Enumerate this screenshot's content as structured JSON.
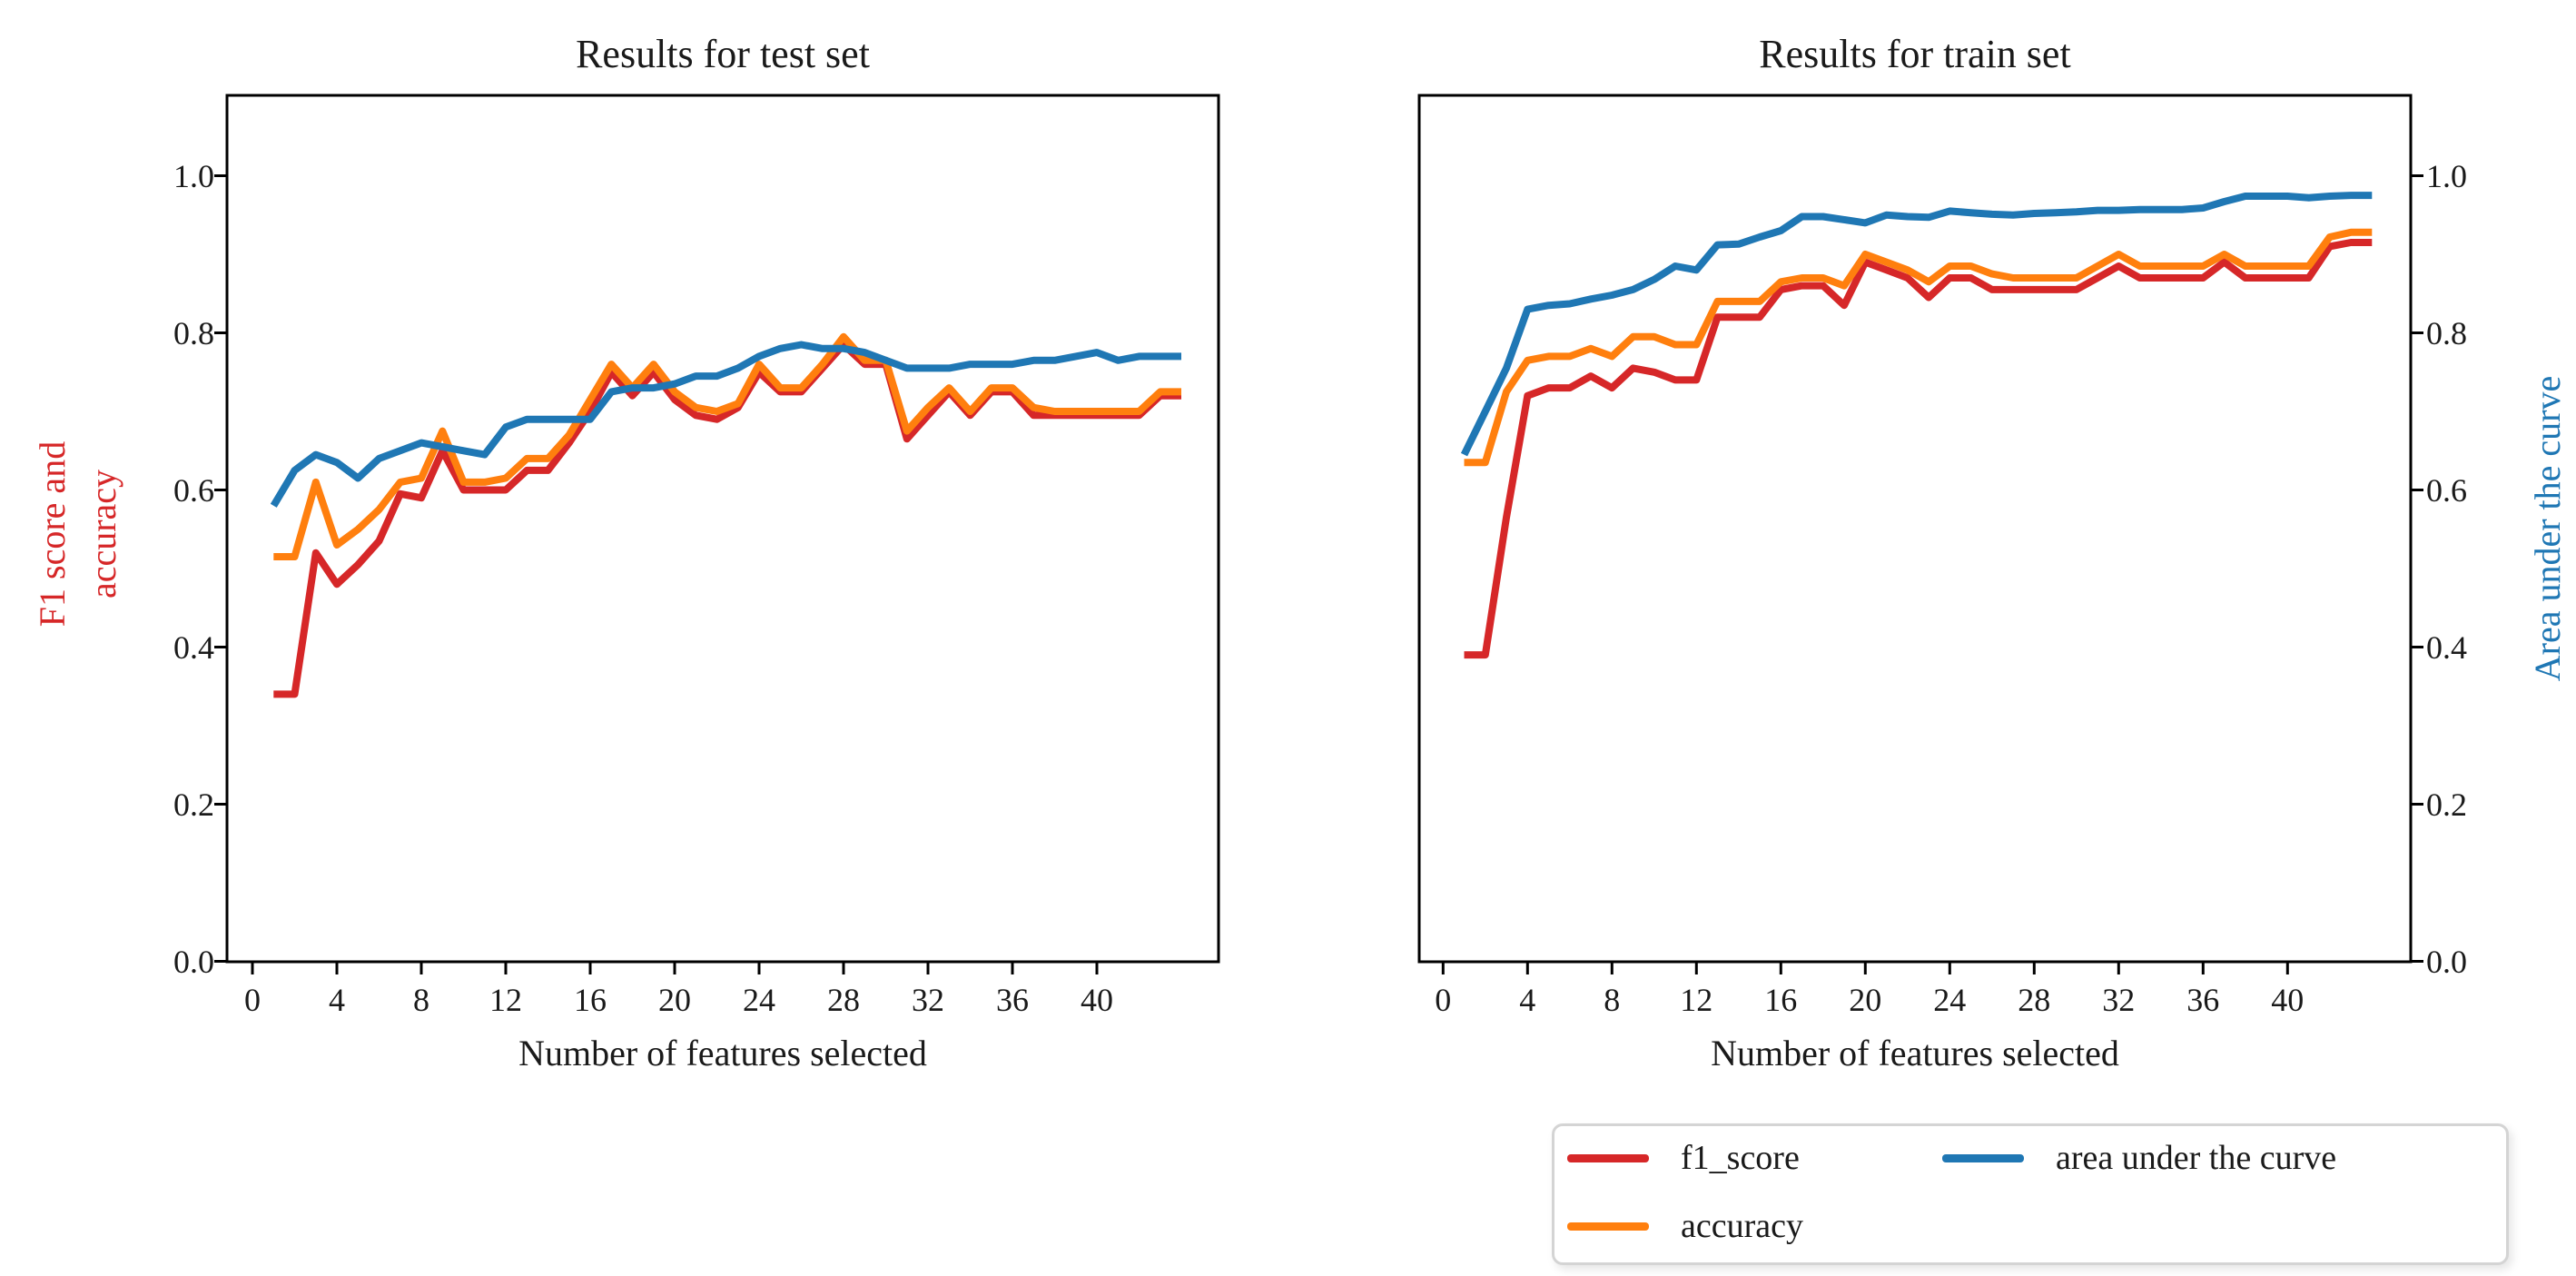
{
  "figure": {
    "background": "#ffffff"
  },
  "colors": {
    "f1_score": "#d62728",
    "accuracy": "#ff7f0e",
    "area_under_curve": "#1f77b4",
    "text": "#1a1a1a",
    "spine": "#000000",
    "legend_border": "#d4d4d4"
  },
  "chart_data": [
    {
      "type": "line",
      "title": "Results for test set",
      "xlabel": "Number of features selected",
      "ylabel_lines": [
        "F1 score and",
        "accuracy"
      ],
      "ylabel_color": "#d62728",
      "x_ticks": [
        0,
        4,
        8,
        12,
        16,
        20,
        24,
        28,
        32,
        36,
        40
      ],
      "y_ticks": [
        "0.0",
        "0.2",
        "0.4",
        "0.6",
        "0.8",
        "1.0"
      ],
      "y_tick_side": "left",
      "xlim": [
        -1.2,
        45.8
      ],
      "ylim": [
        0,
        1.1
      ],
      "grid": false,
      "x": [
        1,
        2,
        3,
        4,
        5,
        6,
        7,
        8,
        9,
        10,
        11,
        12,
        13,
        14,
        15,
        16,
        17,
        18,
        19,
        20,
        21,
        22,
        23,
        24,
        25,
        26,
        27,
        28,
        29,
        30,
        31,
        32,
        33,
        34,
        35,
        36,
        37,
        38,
        39,
        40,
        41,
        42,
        43,
        44
      ],
      "series": [
        {
          "name": "f1_score",
          "color": "#d62728",
          "values": [
            0.34,
            0.34,
            0.52,
            0.48,
            0.505,
            0.535,
            0.595,
            0.59,
            0.65,
            0.6,
            0.6,
            0.6,
            0.625,
            0.625,
            0.66,
            0.7,
            0.75,
            0.72,
            0.75,
            0.715,
            0.695,
            0.69,
            0.705,
            0.75,
            0.725,
            0.725,
            0.755,
            0.785,
            0.76,
            0.76,
            0.665,
            0.695,
            0.725,
            0.695,
            0.725,
            0.725,
            0.695,
            0.695,
            0.695,
            0.695,
            0.695,
            0.695,
            0.72,
            0.72
          ]
        },
        {
          "name": "accuracy",
          "color": "#ff7f0e",
          "values": [
            0.515,
            0.515,
            0.61,
            0.53,
            0.55,
            0.575,
            0.61,
            0.615,
            0.675,
            0.61,
            0.61,
            0.615,
            0.64,
            0.64,
            0.67,
            0.715,
            0.76,
            0.73,
            0.76,
            0.725,
            0.705,
            0.7,
            0.71,
            0.76,
            0.73,
            0.73,
            0.76,
            0.795,
            0.765,
            0.765,
            0.675,
            0.705,
            0.73,
            0.7,
            0.73,
            0.73,
            0.705,
            0.7,
            0.7,
            0.7,
            0.7,
            0.7,
            0.725,
            0.725
          ]
        },
        {
          "name": "area under the curve",
          "color": "#1f77b4",
          "values": [
            0.58,
            0.625,
            0.645,
            0.635,
            0.615,
            0.64,
            0.65,
            0.66,
            0.655,
            0.65,
            0.645,
            0.68,
            0.69,
            0.69,
            0.69,
            0.69,
            0.725,
            0.73,
            0.73,
            0.735,
            0.745,
            0.745,
            0.755,
            0.77,
            0.78,
            0.785,
            0.78,
            0.78,
            0.775,
            0.765,
            0.755,
            0.755,
            0.755,
            0.76,
            0.76,
            0.76,
            0.765,
            0.765,
            0.77,
            0.775,
            0.765,
            0.77,
            0.77,
            0.77
          ]
        }
      ]
    },
    {
      "type": "line",
      "title": "Results for train set",
      "xlabel": "Number of features selected",
      "ylabel_lines": [
        "Area under the curve"
      ],
      "ylabel_color": "#1f77b4",
      "x_ticks": [
        0,
        4,
        8,
        12,
        16,
        20,
        24,
        28,
        32,
        36,
        40
      ],
      "y_ticks": [
        "0.0",
        "0.2",
        "0.4",
        "0.6",
        "0.8",
        "1.0"
      ],
      "y_tick_side": "right",
      "xlim": [
        -1.2,
        45.8
      ],
      "ylim": [
        0,
        1.1
      ],
      "grid": false,
      "x": [
        1,
        2,
        3,
        4,
        5,
        6,
        7,
        8,
        9,
        10,
        11,
        12,
        13,
        14,
        15,
        16,
        17,
        18,
        19,
        20,
        21,
        22,
        23,
        24,
        25,
        26,
        27,
        28,
        29,
        30,
        31,
        32,
        33,
        34,
        35,
        36,
        37,
        38,
        39,
        40,
        41,
        42,
        43,
        44
      ],
      "series": [
        {
          "name": "f1_score",
          "color": "#d62728",
          "values": [
            0.39,
            0.39,
            0.565,
            0.72,
            0.73,
            0.73,
            0.745,
            0.73,
            0.755,
            0.75,
            0.74,
            0.74,
            0.82,
            0.82,
            0.82,
            0.855,
            0.86,
            0.86,
            0.835,
            0.89,
            0.88,
            0.87,
            0.845,
            0.87,
            0.87,
            0.855,
            0.855,
            0.855,
            0.855,
            0.855,
            0.87,
            0.885,
            0.87,
            0.87,
            0.87,
            0.87,
            0.89,
            0.87,
            0.87,
            0.87,
            0.87,
            0.91,
            0.915,
            0.915
          ]
        },
        {
          "name": "accuracy",
          "color": "#ff7f0e",
          "values": [
            0.635,
            0.635,
            0.725,
            0.765,
            0.77,
            0.77,
            0.78,
            0.77,
            0.795,
            0.795,
            0.785,
            0.785,
            0.84,
            0.84,
            0.84,
            0.865,
            0.87,
            0.87,
            0.86,
            0.9,
            0.89,
            0.88,
            0.865,
            0.885,
            0.885,
            0.875,
            0.87,
            0.87,
            0.87,
            0.87,
            0.885,
            0.9,
            0.885,
            0.885,
            0.885,
            0.885,
            0.9,
            0.885,
            0.885,
            0.885,
            0.885,
            0.922,
            0.928,
            0.928
          ]
        },
        {
          "name": "area under the curve",
          "color": "#1f77b4",
          "values": [
            0.645,
            0.7,
            0.755,
            0.83,
            0.835,
            0.837,
            0.843,
            0.848,
            0.855,
            0.868,
            0.885,
            0.88,
            0.912,
            0.913,
            0.922,
            0.93,
            0.948,
            0.948,
            0.944,
            0.94,
            0.95,
            0.948,
            0.947,
            0.955,
            0.953,
            0.951,
            0.95,
            0.952,
            0.953,
            0.954,
            0.956,
            0.956,
            0.957,
            0.957,
            0.957,
            0.959,
            0.967,
            0.974,
            0.974,
            0.974,
            0.972,
            0.974,
            0.975,
            0.975
          ]
        }
      ]
    }
  ],
  "legend": {
    "items": [
      {
        "label": "f1_score",
        "color": "#d62728"
      },
      {
        "label": "accuracy",
        "color": "#ff7f0e"
      },
      {
        "label": "area under the curve",
        "color": "#1f77b4"
      }
    ]
  }
}
